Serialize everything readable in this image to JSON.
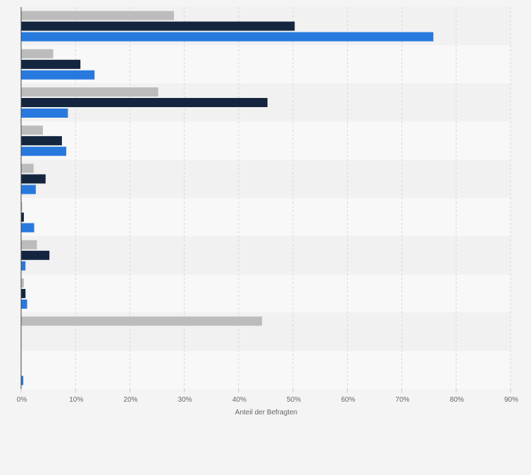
{
  "chart_data": {
    "type": "bar",
    "orientation": "horizontal",
    "title": "",
    "xlabel": "Anteil der Befragten",
    "ylabel": "",
    "xlim": [
      0,
      90
    ],
    "x_ticks": [
      0,
      10,
      20,
      30,
      40,
      50,
      60,
      70,
      80,
      90
    ],
    "x_tick_labels": [
      "0%",
      "10%",
      "20%",
      "30%",
      "40%",
      "50%",
      "60%",
      "70%",
      "80%",
      "90%"
    ],
    "grid": true,
    "legend": "none",
    "categories": [
      "",
      "",
      "",
      "",
      "",
      "",
      "",
      "",
      "",
      ""
    ],
    "series": [
      {
        "name": "",
        "color": "#bcbcbc",
        "values": [
          28.1,
          5.9,
          25.2,
          4.0,
          2.3,
          0.2,
          2.9,
          0.5,
          44.3,
          0
        ]
      },
      {
        "name": "",
        "color": "#14253f",
        "values": [
          50.3,
          10.9,
          45.3,
          7.5,
          4.5,
          0.5,
          5.2,
          0.8,
          0,
          0
        ]
      },
      {
        "name": "",
        "color": "#2879de",
        "values": [
          75.8,
          13.5,
          8.6,
          8.3,
          2.7,
          2.4,
          0.8,
          1.1,
          0,
          0.4
        ]
      }
    ]
  }
}
